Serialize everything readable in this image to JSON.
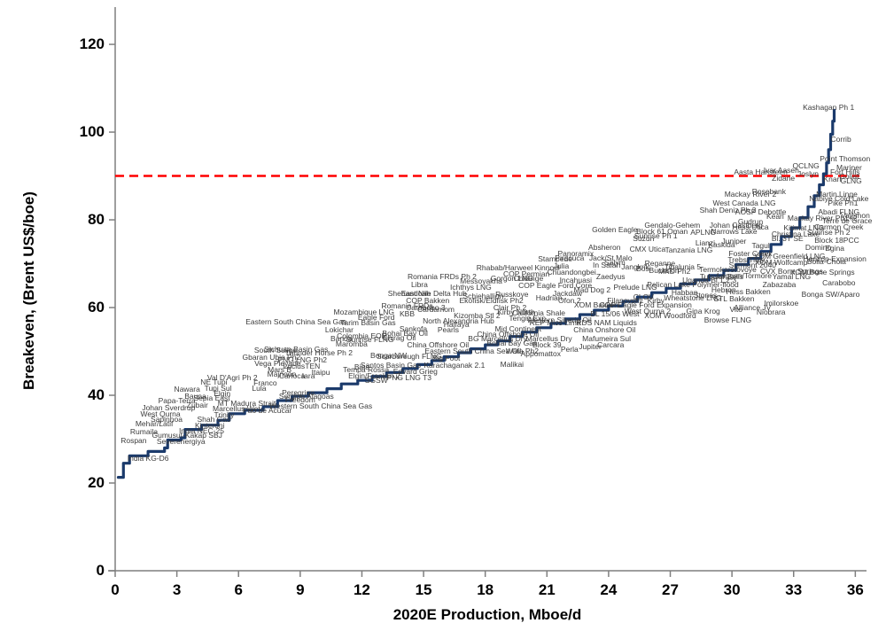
{
  "chart_data": {
    "type": "line",
    "title": "",
    "xlabel": "2020E Production, Mboe/d",
    "ylabel": "Breakeven, (Brent US$/boe)",
    "x_ticks": [
      0,
      3,
      6,
      9,
      12,
      15,
      18,
      21,
      24,
      27,
      30,
      33,
      36
    ],
    "y_ticks": [
      0,
      20,
      40,
      60,
      80,
      100,
      120
    ],
    "xlim": [
      0,
      36.2
    ],
    "ylim": [
      0,
      128.5
    ],
    "grid": false,
    "legend": "none",
    "line_color": "#1b3a6b",
    "axis_color": "#7f7f7f",
    "label_color": "#3b3b3b",
    "reference_line": {
      "y": 90,
      "color": "#ff0000",
      "style": "dashed"
    },
    "curve": [
      [
        0.15,
        21.3
      ],
      [
        0.4,
        24.5
      ],
      [
        0.7,
        26.2
      ],
      [
        1.6,
        27.2
      ],
      [
        2.4,
        28.0
      ],
      [
        2.55,
        29.8
      ],
      [
        3.2,
        30.3
      ],
      [
        3.4,
        32.2
      ],
      [
        4.2,
        33.2
      ],
      [
        5.0,
        34.3
      ],
      [
        5.55,
        35.8
      ],
      [
        6.3,
        36.6
      ],
      [
        7.2,
        37.4
      ],
      [
        7.9,
        38.8
      ],
      [
        8.6,
        39.8
      ],
      [
        9.4,
        40.6
      ],
      [
        10.3,
        41.5
      ],
      [
        11.0,
        42.6
      ],
      [
        11.8,
        43.4
      ],
      [
        12.5,
        44.3
      ],
      [
        13.2,
        45.2
      ],
      [
        14.0,
        46.1
      ],
      [
        14.7,
        47.0
      ],
      [
        15.4,
        47.9
      ],
      [
        16.0,
        48.8
      ],
      [
        16.7,
        49.7
      ],
      [
        17.3,
        50.6
      ],
      [
        18.0,
        51.5
      ],
      [
        18.6,
        52.4
      ],
      [
        19.2,
        53.4
      ],
      [
        19.8,
        54.4
      ],
      [
        20.5,
        55.4
      ],
      [
        21.2,
        56.4
      ],
      [
        21.9,
        57.4
      ],
      [
        22.6,
        58.4
      ],
      [
        23.3,
        59.4
      ],
      [
        24.0,
        60.4
      ],
      [
        24.7,
        61.4
      ],
      [
        25.4,
        62.4
      ],
      [
        26.1,
        63.4
      ],
      [
        26.8,
        64.4
      ],
      [
        27.5,
        65.4
      ],
      [
        28.2,
        66.3
      ],
      [
        28.9,
        67.3
      ],
      [
        29.6,
        68.5
      ],
      [
        30.2,
        69.8
      ],
      [
        30.8,
        71.2
      ],
      [
        31.4,
        72.8
      ],
      [
        31.9,
        74.4
      ],
      [
        32.4,
        76.2
      ],
      [
        32.9,
        78.2
      ],
      [
        33.3,
        80.5
      ],
      [
        33.7,
        83.0
      ],
      [
        34.0,
        85.5
      ],
      [
        34.25,
        88.0
      ],
      [
        34.45,
        90.5
      ],
      [
        34.6,
        93.0
      ],
      [
        34.7,
        96.0
      ],
      [
        34.8,
        99.5
      ],
      [
        34.9,
        102.5
      ],
      [
        34.97,
        105.0
      ]
    ],
    "project_labels": [
      [
        "Rospan",
        0.9,
        29.5
      ],
      [
        "India KG-D6",
        1.6,
        25.5
      ],
      [
        "Rumaila",
        1.4,
        31.5
      ],
      [
        "Mehar/Latif",
        1.9,
        33.3
      ],
      [
        "West Qurna",
        2.2,
        35.5
      ],
      [
        "Sapinhoa",
        2.5,
        34.3
      ],
      [
        "Johan Sverdrup",
        2.6,
        37.0
      ],
      [
        "Papa-Terra",
        3.0,
        38.6
      ],
      [
        "Severenergiya",
        3.2,
        29.3
      ],
      [
        "Gumusut-Kakap SBJ",
        3.5,
        30.8
      ],
      [
        "India NEC-25",
        4.2,
        31.7
      ],
      [
        "Kinteroni",
        4.6,
        32.9
      ],
      [
        "Shah Gas",
        4.8,
        34.4
      ],
      [
        "Zubair",
        4.0,
        37.5
      ],
      [
        "Bauna",
        3.9,
        39.5
      ],
      [
        "Sepia East",
        4.7,
        39.2
      ],
      [
        "Elgin",
        5.2,
        40.2
      ],
      [
        "Trinity",
        5.3,
        35.3
      ],
      [
        "Marcellus Wet",
        5.9,
        36.8
      ],
      [
        "MT Madura Strait",
        6.4,
        38.0
      ],
      [
        "Pao de Acucar",
        7.4,
        36.4
      ],
      [
        "Nawara",
        3.5,
        41.2
      ],
      [
        "NE Tupi",
        4.8,
        42.8
      ],
      [
        "Tupi Sul",
        5.0,
        41.5
      ],
      [
        "Val D'Agri Ph 2",
        5.7,
        43.8
      ],
      [
        "Lula",
        7.0,
        41.5
      ],
      [
        "Franco",
        7.3,
        42.6
      ],
      [
        "Majnoon",
        8.1,
        44.6
      ],
      [
        "Freedom",
        9.0,
        38.8
      ],
      [
        "Peregrino",
        8.9,
        40.4
      ],
      [
        "Sergipe Alagoas",
        9.3,
        39.7
      ],
      [
        "Western South China Sea Gas",
        10.0,
        37.4
      ],
      [
        "Mars B",
        8.0,
        45.7
      ],
      [
        "Lucius",
        8.7,
        46.5
      ],
      [
        "Vega Pleyade",
        7.9,
        47.0
      ],
      [
        "Gbaran Ubie Ph2",
        7.6,
        48.5
      ],
      [
        "Carioca",
        8.6,
        44.2
      ],
      [
        "Iara",
        9.4,
        44.2
      ],
      [
        "Itaipu",
        10.0,
        45.0
      ],
      [
        "TEN",
        9.6,
        46.5
      ],
      [
        "PNG LNG Ph2",
        9.1,
        47.8
      ],
      [
        "South Sulige",
        7.8,
        50.2
      ],
      [
        "Sichuan Basin Gas",
        8.8,
        50.3
      ],
      [
        "Thunder Horse Ph 2",
        9.9,
        49.4
      ],
      [
        "Banda",
        11.0,
        52.8
      ],
      [
        "Lokichar",
        10.9,
        54.7
      ],
      [
        "Maromba",
        11.5,
        51.5
      ],
      [
        "Colombia EOR",
        12.0,
        53.4
      ],
      [
        "Eastern South China Sea Gas",
        8.8,
        56.5
      ],
      [
        "Mozambique LNG",
        12.1,
        58.8
      ],
      [
        "Eagle Ford",
        12.7,
        57.6
      ],
      [
        "Tarim Basin Gas",
        12.3,
        56.3
      ],
      [
        "Bina",
        12.0,
        46.3
      ],
      [
        "Tempa Rossa",
        12.2,
        45.7
      ],
      [
        "Santos Basin Gas",
        13.4,
        46.7
      ],
      [
        "Bonga NW",
        13.3,
        48.9
      ],
      [
        "Scarborough FLNG",
        14.3,
        48.7
      ],
      [
        "Edvard Grieg",
        14.6,
        45.3
      ],
      [
        "Elgin/Franklin 2",
        12.6,
        44.2
      ],
      [
        "SGSW",
        12.7,
        43.2
      ],
      [
        "PNG LNG T3",
        14.3,
        43.8
      ],
      [
        "Karachaganak 2.1",
        16.5,
        46.7
      ],
      [
        "Big Foot",
        16.1,
        48.3
      ],
      [
        "Malikai",
        19.3,
        46.9
      ],
      [
        "China Offshore Oil",
        15.7,
        51.3
      ],
      [
        "Eastern South China Sea Oil",
        17.4,
        49.9
      ],
      [
        "BG Marcellus Dry",
        18.6,
        52.7
      ],
      [
        "Bohai Bay Gas",
        19.3,
        51.7
      ],
      [
        "Marcellus Dry",
        21.1,
        52.7
      ],
      [
        "Block 39",
        21.0,
        51.3
      ],
      [
        "Wafa Ph2",
        19.8,
        49.9
      ],
      [
        "Appomattox",
        20.7,
        49.3
      ],
      [
        "Perla",
        22.1,
        50.3
      ],
      [
        "Jupiter",
        23.1,
        50.9
      ],
      [
        "Carcara",
        24.1,
        51.3
      ],
      [
        "Mafumeira Sul",
        23.9,
        52.7
      ],
      [
        "Mid Continent",
        19.6,
        54.9
      ],
      [
        "China Offshore Oil",
        19.1,
        53.7
      ],
      [
        "China Onshore Oil",
        23.8,
        54.7
      ],
      [
        "REP Miss Lime",
        21.4,
        56.4
      ],
      [
        "RDS NAM Liquids",
        23.9,
        56.4
      ],
      [
        "Kizomba Stl 2",
        17.6,
        58.0
      ],
      [
        "KBB",
        14.2,
        58.4
      ],
      [
        "COP Bakken",
        15.2,
        61.4
      ],
      [
        "Cardamom",
        15.6,
        59.4
      ],
      [
        "Carabobo 3",
        15.1,
        59.8
      ],
      [
        "Romania FRDs",
        14.2,
        60.2
      ],
      [
        "Ekofisk/Eldfisk Ph2",
        18.3,
        61.4
      ],
      [
        "Schiehallion",
        17.9,
        62.4
      ],
      [
        "Russkoye",
        19.3,
        62.8
      ],
      [
        "Shenandoah",
        14.3,
        63.0
      ],
      [
        "East Nile Delta Hub",
        15.5,
        63.0
      ],
      [
        "North Alexandria Hub",
        16.7,
        56.8
      ],
      [
        "Halfaya",
        16.6,
        56.0
      ],
      [
        "Sankofa",
        14.5,
        54.9
      ],
      [
        "Bohai Bay Oil",
        14.1,
        53.9
      ],
      [
        "Chirag Oil",
        13.8,
        52.9
      ],
      [
        "Sunrise FLNG",
        12.4,
        52.5
      ],
      [
        "Pearls",
        16.2,
        54.7
      ],
      [
        "Clair Ph 2",
        19.2,
        59.8
      ],
      [
        "Kirby North",
        19.5,
        58.8
      ],
      [
        "Hadrian",
        21.1,
        62.0
      ],
      [
        "Jackdaw",
        22.0,
        63.0
      ],
      [
        "Ofon 2",
        22.1,
        61.4
      ],
      [
        "Mad Dog 2",
        23.2,
        63.8
      ],
      [
        "California Shale",
        20.6,
        58.6
      ],
      [
        "XOM Bakken",
        23.4,
        60.4
      ],
      [
        "Filanovsky",
        24.8,
        61.4
      ],
      [
        "BL 15/06 West",
        24.3,
        58.4
      ],
      [
        "Tengiz Exp.",
        20.1,
        57.4
      ],
      [
        "Western Siberia Oil",
        21.6,
        57.0
      ],
      [
        "Ichthys LNG",
        17.3,
        64.4
      ],
      [
        "Libra",
        14.8,
        65.1
      ],
      [
        "Romania FRDs Ph 2",
        15.9,
        66.9
      ],
      [
        "Messoyakha",
        17.8,
        65.9
      ],
      [
        "Gorgon LNG",
        19.3,
        66.5
      ],
      [
        "COP Permian",
        20.0,
        67.5
      ],
      [
        "Chilange",
        20.1,
        66.5
      ],
      [
        "Rhabab/Harweel Kinnoul",
        19.6,
        68.9
      ],
      [
        "Julia",
        21.7,
        69.3
      ],
      [
        "Stampede",
        21.4,
        70.9
      ],
      [
        "Incahuasi",
        22.4,
        66.1
      ],
      [
        "Chuandongbei",
        22.2,
        67.9
      ],
      [
        "COP Eagle Ford Core",
        21.4,
        64.8
      ],
      [
        "Zaedyus",
        24.1,
        66.9
      ],
      [
        "In Salah",
        23.9,
        69.5
      ],
      [
        "Salym",
        24.3,
        70.1
      ],
      [
        "Jack/St Malo",
        24.1,
        71.1
      ],
      [
        "CMX Utica",
        25.9,
        73.1
      ],
      [
        "Panoramix",
        22.4,
        72.1
      ],
      [
        "Piracuca",
        22.1,
        71.1
      ],
      [
        "Absheron",
        23.8,
        73.5
      ],
      [
        "Jangkrik",
        25.3,
        69.1
      ],
      [
        "Bosi",
        25.7,
        68.7
      ],
      [
        "Reganne",
        26.5,
        69.9
      ],
      [
        "Buckskin",
        26.7,
        68.3
      ],
      [
        "MKD Ph2",
        27.2,
        68.1
      ],
      [
        "Tibalunia 5",
        27.6,
        69.1
      ],
      [
        "Prelude LNG",
        25.3,
        64.4
      ],
      [
        "CLOV",
        25.7,
        62.3
      ],
      [
        "Kirby",
        26.3,
        61.4
      ],
      [
        "COP Eagle Ford Expansion",
        25.8,
        60.4
      ],
      [
        "West Qurna 2",
        25.9,
        59.0
      ],
      [
        "XOM Woodford",
        27.0,
        58.0
      ],
      [
        "Gina Krog",
        28.6,
        59.0
      ],
      [
        "Wheatstone LNG",
        28.1,
        62.0
      ],
      [
        "Stones",
        28.7,
        62.6
      ],
      [
        "Habban",
        27.7,
        63.2
      ],
      [
        "Pelican Lake Polymer-flood",
        28.1,
        65.1
      ],
      [
        "Uganda Bl.1,2,3",
        28.9,
        66.1
      ],
      [
        "Tubular Bells",
        29.5,
        66.9
      ],
      [
        "Laggan/Tormore",
        30.6,
        67.1
      ],
      [
        "Yamal LNG",
        32.9,
        66.9
      ],
      [
        "Termokarstovoye",
        29.8,
        68.5
      ],
      [
        "Trebs/Titov",
        30.7,
        70.7
      ],
      [
        "Surmont 2040",
        31.0,
        69.5
      ],
      [
        "XOM Wolfcamp",
        32.4,
        70.1
      ],
      [
        "CVX Bone Springs",
        32.9,
        68.1
      ],
      [
        "XOM Bone Springs",
        34.4,
        67.9
      ],
      [
        "Bolla-Chola",
        34.6,
        70.3
      ],
      [
        "Horizon Expansion",
        35.0,
        70.9
      ],
      [
        "XOM Greenfield LNG",
        32.8,
        71.5
      ],
      [
        "Foster Creek",
        30.9,
        72.1
      ],
      [
        "Tagul",
        31.4,
        73.9
      ],
      [
        "Hebron",
        29.6,
        63.8
      ],
      [
        "Hess Bakken",
        30.8,
        63.4
      ],
      [
        "STL Bakken",
        30.1,
        61.8
      ],
      [
        "Zabazaba",
        32.3,
        65.1
      ],
      [
        "Imilorskoe",
        32.4,
        60.8
      ],
      [
        "Niobrara",
        31.9,
        58.8
      ],
      [
        "Alliance JV",
        31.0,
        59.8
      ],
      [
        "Vito",
        30.2,
        59.4
      ],
      [
        "Browse FLNG",
        29.8,
        57.0
      ],
      [
        "Bonga SW/Aparo",
        34.8,
        62.8
      ],
      [
        "Carabobo",
        35.2,
        65.5
      ],
      [
        "Golden Eagle",
        24.3,
        77.6
      ],
      [
        "Block 61 Oman",
        26.6,
        77.2
      ],
      [
        "Gendalo-Gehem",
        27.1,
        78.6
      ],
      [
        "Suzun",
        25.7,
        75.6
      ],
      [
        "Sunrise Ph 1",
        26.3,
        76.2
      ],
      [
        "APLNG",
        28.6,
        77.0
      ],
      [
        "Johan Castberg",
        30.2,
        78.6
      ],
      [
        "Hess Utica",
        30.9,
        78.2
      ],
      [
        "Narrows Lake",
        30.1,
        77.2
      ],
      [
        "Gudrun",
        30.9,
        79.4
      ],
      [
        "Lianzi",
        28.7,
        74.5
      ],
      [
        "Kaskida",
        29.5,
        74.1
      ],
      [
        "Juniper",
        30.1,
        74.9
      ],
      [
        "Tanzania LNG",
        27.9,
        72.9
      ],
      [
        "Shah Deniz Ph 2",
        29.8,
        82.0
      ],
      [
        "West Canada LNG",
        30.6,
        83.6
      ],
      [
        "AOSP Debottle",
        31.4,
        81.6
      ],
      [
        "Kearl",
        32.1,
        80.6
      ],
      [
        "Mackay River 2",
        30.9,
        85.7
      ],
      [
        "Rosebank",
        31.8,
        86.3
      ],
      [
        "Aasta Hansteen",
        31.4,
        90.7
      ],
      [
        "Ivar Aasen",
        32.4,
        91.1
      ],
      [
        "Joslyn",
        33.7,
        90.3
      ],
      [
        "Zidane",
        32.5,
        89.3
      ],
      [
        "QCLNG",
        33.6,
        92.1
      ],
      [
        "Knarr",
        34.9,
        89.1
      ],
      [
        "GLNG",
        35.8,
        88.7
      ],
      [
        "Goliat",
        35.7,
        89.7
      ],
      [
        "Fort Hills",
        35.5,
        90.7
      ],
      [
        "Mariner",
        35.7,
        91.7
      ],
      [
        "Point Thomson",
        35.5,
        93.7
      ],
      [
        "Martin Linge",
        35.1,
        85.7
      ],
      [
        "Nabiye Cold Lake",
        35.2,
        84.6
      ],
      [
        "Pike Ph1",
        35.4,
        83.6
      ],
      [
        "Abadi FLNG",
        35.2,
        81.6
      ],
      [
        "Mackay River Ph1+2",
        34.4,
        80.2
      ],
      [
        "Terre de Grace",
        35.6,
        79.6
      ],
      [
        "Valemon",
        36.0,
        80.8
      ],
      [
        "Kitimat LNG",
        33.5,
        78.0
      ],
      [
        "Carmon Creek",
        35.2,
        78.2
      ],
      [
        "Sunrise Ph 2",
        34.7,
        77.0
      ],
      [
        "Christina Lake",
        33.1,
        76.6
      ],
      [
        "Bl. 3T SE",
        32.7,
        75.6
      ],
      [
        "Block 18PCC",
        35.1,
        75.2
      ],
      [
        "Domino",
        34.2,
        73.5
      ],
      [
        "Egina",
        35.0,
        73.3
      ],
      [
        "Corrib",
        35.3,
        98.2
      ],
      [
        "Kashagan Ph 1",
        34.7,
        105.4
      ]
    ]
  }
}
